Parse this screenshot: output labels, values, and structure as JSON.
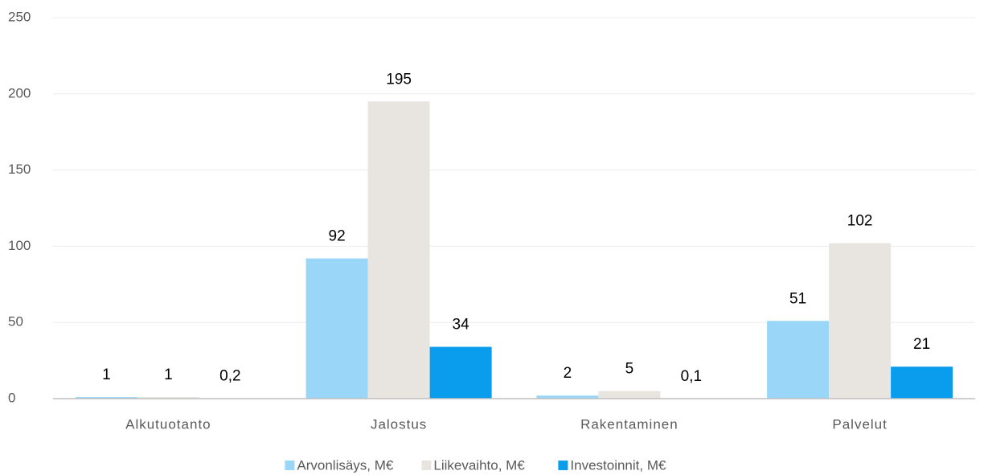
{
  "chart_data": {
    "type": "bar",
    "categories": [
      "Alkutuotanto",
      "Jalostus",
      "Rakentaminen",
      "Palvelut"
    ],
    "series": [
      {
        "name": "Arvonlisäys, M€",
        "color": "#99d6f8",
        "values": [
          1,
          92,
          2,
          51
        ]
      },
      {
        "name": "Liikevaihto, M€",
        "color": "#e8e5e0",
        "values": [
          1,
          195,
          5,
          102
        ]
      },
      {
        "name": "Investoinnit, M€",
        "color": "#0b9ded",
        "values": [
          0.2,
          34,
          0.1,
          21
        ],
        "value_labels": [
          "0,2",
          "34",
          "0,1",
          "21"
        ]
      }
    ],
    "ylim": [
      0,
      250
    ],
    "yticks": [
      0,
      50,
      100,
      150,
      200,
      250
    ],
    "grid": true,
    "legend": "bottom"
  }
}
